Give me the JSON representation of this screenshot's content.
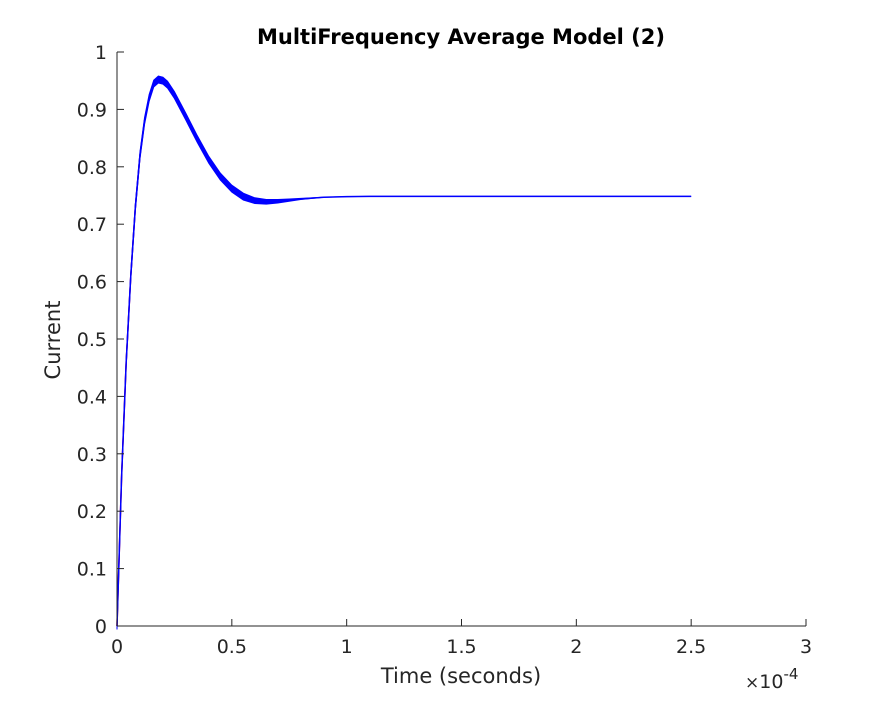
{
  "chart_data": {
    "type": "line",
    "title": "MultiFrequency Average Model (2)",
    "xlabel": "Time (seconds)",
    "ylabel": "Current",
    "x_exponent_label": {
      "times": "×",
      "base": "10",
      "power": "-4"
    },
    "xlim": [
      0,
      3
    ],
    "ylim": [
      0,
      1
    ],
    "x_ticks": [
      "0",
      "0.5",
      "1",
      "1.5",
      "2",
      "2.5",
      "3"
    ],
    "y_ticks": [
      "0",
      "0.1",
      "0.2",
      "0.3",
      "0.4",
      "0.5",
      "0.6",
      "0.7",
      "0.8",
      "0.9",
      "1"
    ],
    "x_tick_values": [
      0,
      0.5,
      1,
      1.5,
      2,
      2.5,
      3
    ],
    "y_tick_values": [
      0,
      0.1,
      0.2,
      0.3,
      0.4,
      0.5,
      0.6,
      0.7,
      0.8,
      0.9,
      1
    ],
    "x_units_scale": "1e-4 seconds",
    "grid": false,
    "series": [
      {
        "color": "#ff0000",
        "x": [
          0,
          0.02,
          0.04,
          0.06,
          0.08,
          0.1,
          0.12,
          0.14,
          0.16,
          0.18,
          0.2
        ],
        "y": [
          0,
          0.26,
          0.46,
          0.61,
          0.73,
          0.82,
          0.88,
          0.92,
          0.945,
          0.952,
          0.952
        ]
      },
      {
        "color": "#0000ff",
        "ripple": 0.012,
        "x": [
          0,
          0.02,
          0.04,
          0.06,
          0.08,
          0.1,
          0.12,
          0.14,
          0.16,
          0.18,
          0.2,
          0.22,
          0.25,
          0.3,
          0.35,
          0.4,
          0.45,
          0.5,
          0.55,
          0.6,
          0.65,
          0.7,
          0.75,
          0.8,
          0.9,
          1.0,
          1.1,
          1.2,
          1.4,
          1.6,
          1.8,
          2.0,
          2.2,
          2.4,
          2.5
        ],
        "y": [
          0,
          0.26,
          0.46,
          0.61,
          0.73,
          0.82,
          0.88,
          0.92,
          0.945,
          0.952,
          0.95,
          0.943,
          0.925,
          0.887,
          0.848,
          0.812,
          0.783,
          0.762,
          0.748,
          0.741,
          0.739,
          0.74,
          0.742,
          0.744,
          0.747,
          0.748,
          0.7485,
          0.7485,
          0.7485,
          0.7485,
          0.7485,
          0.7485,
          0.7485,
          0.7485,
          0.7485
        ]
      }
    ]
  }
}
